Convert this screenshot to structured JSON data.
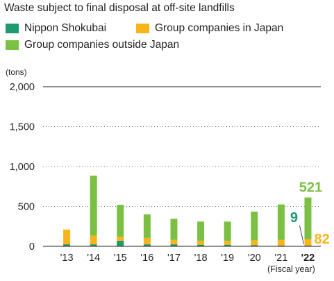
{
  "chart_data": {
    "type": "bar",
    "stacked": true,
    "title": "Waste subject to final disposal at off-site landfills",
    "ylabel": "(tons)",
    "xlabel": "(Fiscal year)",
    "ylim": [
      0,
      2000
    ],
    "yticks": [
      0,
      500,
      1000,
      1500,
      2000
    ],
    "ytick_labels": [
      "0",
      "500",
      "1,000",
      "1,500",
      "2,000"
    ],
    "grid": "dotted horizontal",
    "legend_position": "top-left",
    "categories": [
      "'13",
      "'14",
      "'15",
      "'16",
      "'17",
      "'18",
      "'19",
      "'20",
      "'21",
      "'22"
    ],
    "series": [
      {
        "name": "Nippon Shokubai",
        "color": "#1e9a6e",
        "values": [
          25,
          25,
          70,
          25,
          25,
          20,
          20,
          15,
          10,
          9
        ]
      },
      {
        "name": "Group companies in Japan",
        "color": "#f9b41a",
        "values": [
          185,
          110,
          50,
          80,
          55,
          50,
          50,
          60,
          70,
          82
        ]
      },
      {
        "name": "Group companies outside Japan",
        "color": "#7cc043",
        "values": [
          0,
          750,
          400,
          295,
          265,
          240,
          240,
          360,
          445,
          521
        ]
      }
    ],
    "annotations": [
      {
        "category": "'22",
        "series": "Group companies outside Japan",
        "text": "521",
        "color": "#7cc043"
      },
      {
        "category": "'22",
        "series": "Nippon Shokubai",
        "text": "9",
        "color": "#1e9a6e"
      },
      {
        "category": "'22",
        "series": "Group companies in Japan",
        "text": "82",
        "color": "#f9b41a"
      }
    ]
  }
}
